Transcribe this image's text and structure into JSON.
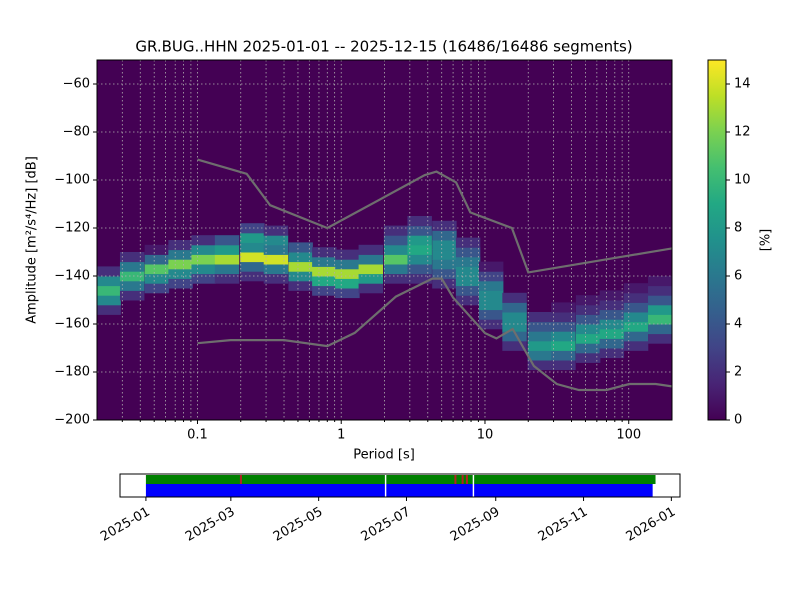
{
  "chart_data": [
    {
      "type": "heatmap",
      "title": "GR.BUG..HHN   2025-01-01 -- 2025-12-15  (16486/16486 segments)",
      "xlabel": "Period [s]",
      "ylabel": "Amplitude [m²/s⁴/Hz] [dB]",
      "xscale": "log",
      "xlim": [
        0.02,
        200
      ],
      "ylim": [
        -200,
        -50
      ],
      "xticks": [
        0.1,
        1,
        10,
        100
      ],
      "xminorticks": [
        0.03,
        0.04,
        0.05,
        0.06,
        0.07,
        0.08,
        0.09,
        0.2,
        0.3,
        0.4,
        0.5,
        0.6,
        0.7,
        0.8,
        0.9,
        2,
        3,
        4,
        5,
        6,
        7,
        8,
        9,
        20,
        30,
        40,
        50,
        60,
        70,
        80,
        90
      ],
      "yticks": [
        {
          "value": -200,
          "label": "−200"
        },
        {
          "value": -180,
          "label": "−180"
        },
        {
          "value": -160,
          "label": "−160"
        },
        {
          "value": -140,
          "label": "−140"
        },
        {
          "value": -120,
          "label": "−120"
        },
        {
          "value": -100,
          "label": "−100"
        },
        {
          "value": -80,
          "label": "−80"
        },
        {
          "value": -60,
          "label": "−60"
        }
      ],
      "grid": true,
      "colorbar": {
        "label": "[%]",
        "lim": [
          0,
          15
        ],
        "ticks": [
          0,
          2,
          4,
          6,
          8,
          10,
          12,
          14
        ],
        "colormap": "viridis"
      },
      "density": [
        {
          "period": 0.024,
          "amplitude": [
            -154,
            -150,
            -146,
            -142,
            -138
          ],
          "percent": [
            2,
            7,
            10,
            7,
            2
          ]
        },
        {
          "period": 0.035,
          "amplitude": [
            -148,
            -144,
            -140,
            -136,
            -132
          ],
          "percent": [
            2,
            6,
            10,
            6,
            2
          ]
        },
        {
          "period": 0.052,
          "amplitude": [
            -145,
            -141,
            -137,
            -133,
            -129
          ],
          "percent": [
            3,
            7,
            11,
            5,
            1
          ]
        },
        {
          "period": 0.076,
          "amplitude": [
            -143,
            -139,
            -135,
            -131,
            -127
          ],
          "percent": [
            3,
            7,
            12,
            6,
            2
          ]
        },
        {
          "period": 0.11,
          "amplitude": [
            -141,
            -137,
            -133,
            -129,
            -125
          ],
          "percent": [
            3,
            7,
            12,
            7,
            2
          ]
        },
        {
          "period": 0.16,
          "amplitude": [
            -141,
            -137,
            -133,
            -129,
            -125
          ],
          "percent": [
            2,
            6,
            13,
            8,
            4
          ]
        },
        {
          "period": 0.24,
          "amplitude": [
            -140,
            -136,
            -132,
            -128,
            -124,
            -120
          ],
          "percent": [
            2,
            5,
            14,
            7,
            8,
            3
          ]
        },
        {
          "period": 0.35,
          "amplitude": [
            -141,
            -137,
            -133,
            -129,
            -125,
            -121
          ],
          "percent": [
            2,
            6,
            14,
            6,
            7,
            2
          ]
        },
        {
          "period": 0.52,
          "amplitude": [
            -144,
            -140,
            -136,
            -132,
            -128
          ],
          "percent": [
            2,
            7,
            13,
            7,
            4
          ]
        },
        {
          "period": 0.76,
          "amplitude": [
            -146,
            -142,
            -138,
            -134,
            -130
          ],
          "percent": [
            3,
            9,
            13,
            6,
            2
          ]
        },
        {
          "period": 1.1,
          "amplitude": [
            -147,
            -143,
            -139,
            -135,
            -131
          ],
          "percent": [
            3,
            9,
            13,
            6,
            2
          ]
        },
        {
          "period": 1.6,
          "amplitude": [
            -145,
            -141,
            -137,
            -133,
            -129
          ],
          "percent": [
            2,
            8,
            13,
            6,
            2
          ]
        },
        {
          "period": 2.4,
          "amplitude": [
            -141,
            -137,
            -133,
            -129,
            -125,
            -121
          ],
          "percent": [
            2,
            6,
            11,
            7,
            4,
            2
          ]
        },
        {
          "period": 3.5,
          "amplitude": [
            -141,
            -137,
            -133,
            -129,
            -125,
            -121,
            -117
          ],
          "percent": [
            2,
            4,
            7,
            9,
            8,
            4,
            2
          ]
        },
        {
          "period": 5.2,
          "amplitude": [
            -143,
            -139,
            -135,
            -131,
            -127,
            -123,
            -119
          ],
          "percent": [
            2,
            4,
            6,
            7,
            7,
            5,
            2
          ]
        },
        {
          "period": 7.6,
          "amplitude": [
            -150,
            -146,
            -142,
            -138,
            -134,
            -130,
            -126
          ],
          "percent": [
            2,
            4,
            7,
            7,
            6,
            4,
            2
          ]
        },
        {
          "period": 11,
          "amplitude": [
            -160,
            -156,
            -152,
            -148,
            -144,
            -140,
            -136
          ],
          "percent": [
            2,
            4,
            7,
            7,
            6,
            3,
            1
          ]
        },
        {
          "period": 16,
          "amplitude": [
            -169,
            -165,
            -161,
            -157,
            -153,
            -149
          ],
          "percent": [
            2,
            5,
            7,
            7,
            5,
            2
          ]
        },
        {
          "period": 24,
          "amplitude": [
            -177,
            -173,
            -169,
            -165,
            -161,
            -157
          ],
          "percent": [
            2,
            6,
            8,
            6,
            4,
            2
          ]
        },
        {
          "period": 35,
          "amplitude": [
            -177,
            -173,
            -169,
            -165,
            -161,
            -157,
            -153
          ],
          "percent": [
            2,
            5,
            9,
            7,
            4,
            2,
            1
          ]
        },
        {
          "period": 52,
          "amplitude": [
            -174,
            -170,
            -166,
            -162,
            -158,
            -154,
            -150
          ],
          "percent": [
            2,
            5,
            9,
            7,
            4,
            2,
            1
          ]
        },
        {
          "period": 76,
          "amplitude": [
            -172,
            -168,
            -164,
            -160,
            -156,
            -152,
            -148
          ],
          "percent": [
            2,
            5,
            9,
            7,
            4,
            2,
            1
          ]
        },
        {
          "period": 112,
          "amplitude": [
            -169,
            -165,
            -161,
            -157,
            -153,
            -149,
            -145
          ],
          "percent": [
            2,
            5,
            9,
            7,
            4,
            2,
            1
          ]
        },
        {
          "period": 165,
          "amplitude": [
            -166,
            -162,
            -158,
            -154,
            -150,
            -146,
            -142
          ],
          "percent": [
            2,
            5,
            10,
            8,
            4,
            2,
            1
          ]
        }
      ],
      "series": [
        {
          "color": "#6e6e6e",
          "x": [
            0.1,
            0.22,
            0.32,
            0.8,
            3.8,
            4.6,
            6.3,
            7.9,
            15.4,
            20,
            200
          ],
          "values": [
            -91.5,
            -97.4,
            -110.5,
            -120,
            -98,
            -96.5,
            -101,
            -113.5,
            -120,
            -138.5,
            -128.5
          ]
        },
        {
          "color": "#6e6e6e",
          "x": [
            0.1,
            0.17,
            0.4,
            0.8,
            1.24,
            2.4,
            4.3,
            5,
            6,
            10,
            12,
            15.6,
            21.9,
            31.6,
            45,
            70,
            101,
            154,
            200
          ],
          "values": [
            -168,
            -166.7,
            -166.7,
            -169.2,
            -163.7,
            -148.6,
            -141.1,
            -141.1,
            -149,
            -163.8,
            -166,
            -162.1,
            -177.5,
            -185,
            -187.5,
            -187.5,
            -185,
            -185,
            -186
          ]
        }
      ]
    },
    {
      "type": "timeline",
      "xlim": [
        "2024-12-14",
        "2026-01-07"
      ],
      "xticks": [
        "2025-01",
        "2025-03",
        "2025-05",
        "2025-07",
        "2025-09",
        "2025-11",
        "2026-01"
      ],
      "series": [
        {
          "color": "#008000",
          "segments": [
            [
              "2025-01-01",
              "2025-06-16"
            ],
            [
              "2025-06-17",
              "2025-08-16"
            ],
            [
              "2025-08-17",
              "2025-12-21"
            ]
          ]
        },
        {
          "color": "#0000ff",
          "segments": [
            [
              "2025-01-01",
              "2025-06-16"
            ],
            [
              "2025-06-17",
              "2025-08-16"
            ],
            [
              "2025-08-17",
              "2025-12-19"
            ]
          ]
        }
      ],
      "markers": {
        "color": "#b22222",
        "dates": [
          "2025-03-08",
          "2025-08-04",
          "2025-08-09",
          "2025-08-12"
        ]
      }
    }
  ]
}
